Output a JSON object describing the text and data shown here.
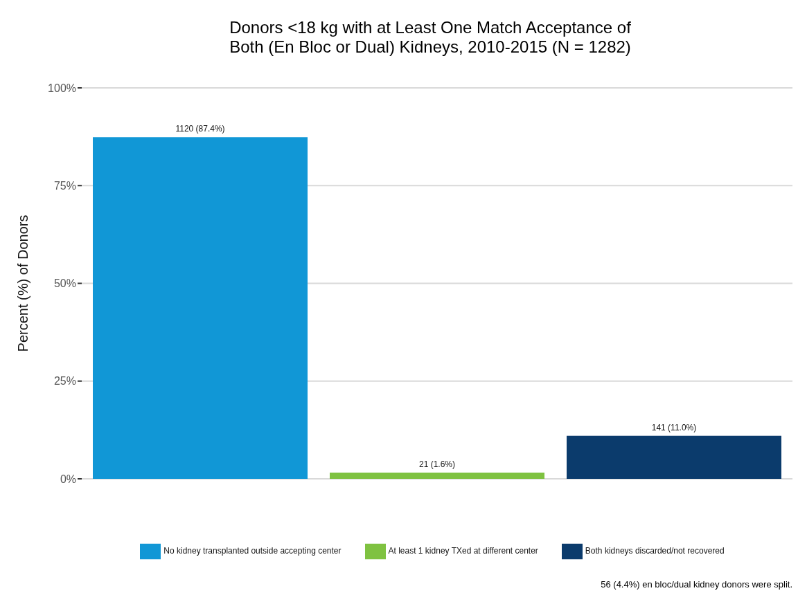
{
  "chart_data": {
    "type": "bar",
    "title": "Donors <18 kg with at Least One Match Acceptance of\nBoth (En Bloc or Dual) Kidneys, 2010-2015 (N = 1282)",
    "ylabel": "Percent (%) of Donors",
    "categories": [
      null,
      null,
      null
    ],
    "series": [
      {
        "name": "No kidney transplanted outside accepting center",
        "color": "#1197d6",
        "values": [
          87.4,
          null,
          null
        ],
        "value_labels": [
          "1120 (87.4%)",
          null,
          null
        ]
      },
      {
        "name": "At least 1 kidney TXed at different center",
        "color": "#7fc241",
        "values": [
          null,
          1.6,
          null
        ],
        "value_labels": [
          null,
          "21 (1.6%)",
          null
        ]
      },
      {
        "name": "Both kidneys discarded/not recovered",
        "color": "#0b3b6c",
        "values": [
          null,
          null,
          11.0
        ],
        "value_labels": [
          null,
          null,
          "141 (11.0%)"
        ]
      }
    ],
    "ylim": [
      0,
      100
    ],
    "yticks": [
      {
        "value": 0,
        "label": "0%"
      },
      {
        "value": 25,
        "label": "25%"
      },
      {
        "value": 50,
        "label": "50%"
      },
      {
        "value": 75,
        "label": "75%"
      },
      {
        "value": 100,
        "label": "100%"
      }
    ],
    "grid": "y",
    "legend": "bottom",
    "tick_labels": "y",
    "annotations": [
      "56 (4.4%) en bloc/dual kidney donors were split."
    ]
  }
}
